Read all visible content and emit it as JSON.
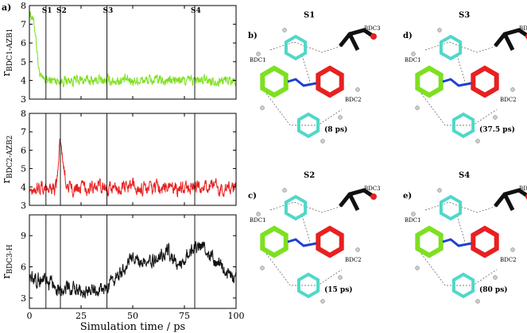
{
  "chart_data": [
    {
      "type": "line",
      "panel_label": "a)",
      "ylabel_main": "r",
      "ylabel_sub": "BDC1-AZB1",
      "xlim": [
        0,
        100
      ],
      "ylim": [
        3,
        8
      ],
      "yticks": [
        3,
        4,
        5,
        6,
        7,
        8
      ],
      "xticks": [
        0,
        25,
        50,
        75,
        100
      ],
      "color": "#7ee020",
      "baseline": 4.0,
      "noise": 0.22,
      "events": [
        {
          "x": 0,
          "y": 7.6
        },
        {
          "x": 1.5,
          "y": 7.4
        },
        {
          "x": 3,
          "y": 6.5
        },
        {
          "x": 4.5,
          "y": 4.6
        },
        {
          "x": 6,
          "y": 4.0
        }
      ],
      "vlines": [
        {
          "x": 8,
          "label": "S1"
        },
        {
          "x": 15,
          "label": "S2"
        },
        {
          "x": 37.5,
          "label": "S3"
        },
        {
          "x": 80,
          "label": "S4"
        }
      ],
      "grid": false
    },
    {
      "type": "line",
      "ylabel_main": "r",
      "ylabel_sub": "BDC2-AZB2",
      "xlim": [
        0,
        100
      ],
      "ylim": [
        3,
        8
      ],
      "yticks": [
        3,
        4,
        5,
        6,
        7,
        8
      ],
      "xticks": [
        0,
        25,
        50,
        75,
        100
      ],
      "color": "#e82020",
      "baseline": 3.95,
      "noise": 0.3,
      "events": [
        {
          "x": 13,
          "y": 4.0
        },
        {
          "x": 14,
          "y": 5.2
        },
        {
          "x": 14.8,
          "y": 6.6
        },
        {
          "x": 15.8,
          "y": 5.8
        },
        {
          "x": 17,
          "y": 4.8
        },
        {
          "x": 18.5,
          "y": 4.0
        }
      ],
      "vlines": [
        {
          "x": 8
        },
        {
          "x": 15
        },
        {
          "x": 37.5
        },
        {
          "x": 80
        }
      ],
      "grid": false
    },
    {
      "type": "line",
      "ylabel_main": "r",
      "ylabel_sub": "BDC3-H",
      "xlabel": "Simulation time / ps",
      "xlim": [
        0,
        100
      ],
      "ylim": [
        2,
        11
      ],
      "yticks": [
        3,
        6,
        9
      ],
      "xticks": [
        0,
        25,
        50,
        75,
        100
      ],
      "xtick_labels": [
        "0",
        "25",
        "50",
        "75",
        "100"
      ],
      "color": "#111111",
      "baseline": 4.5,
      "noise": 0.55,
      "events": [
        {
          "x": 0,
          "y": 5.0
        },
        {
          "x": 15,
          "y": 4.0
        },
        {
          "x": 25,
          "y": 3.6
        },
        {
          "x": 37,
          "y": 3.8
        },
        {
          "x": 42,
          "y": 5.0
        },
        {
          "x": 50,
          "y": 6.8
        },
        {
          "x": 56,
          "y": 6.0
        },
        {
          "x": 62,
          "y": 7.0
        },
        {
          "x": 67,
          "y": 7.6
        },
        {
          "x": 72,
          "y": 6.0
        },
        {
          "x": 78,
          "y": 7.6
        },
        {
          "x": 84,
          "y": 8.0
        },
        {
          "x": 88,
          "y": 6.8
        },
        {
          "x": 94,
          "y": 5.6
        },
        {
          "x": 100,
          "y": 4.8
        }
      ],
      "vlines": [
        {
          "x": 8
        },
        {
          "x": 15
        },
        {
          "x": 37.5
        },
        {
          "x": 80
        }
      ],
      "grid": false
    }
  ],
  "snapshots": [
    {
      "panel": "b)",
      "state": "S1",
      "time": "(8 ps)",
      "labels": [
        "BDC3",
        "BDC1",
        "BDC2"
      ]
    },
    {
      "panel": "d)",
      "state": "S3",
      "time": "(37.5 ps)",
      "labels": [
        "BDC3",
        "BDC1",
        "BDC2"
      ]
    },
    {
      "panel": "c)",
      "state": "S2",
      "time": "(15 ps)",
      "labels": [
        "BDC1",
        "BDC3",
        "BDC2"
      ]
    },
    {
      "panel": "e)",
      "state": "S4",
      "time": "(80 ps)",
      "labels": [
        "BDC3",
        "BDC1",
        "BDC2"
      ]
    }
  ],
  "colors": {
    "green": "#7ee020",
    "red": "#e82020",
    "cyan": "#4fd8c8",
    "blue": "#2040d0",
    "black": "#111111"
  }
}
